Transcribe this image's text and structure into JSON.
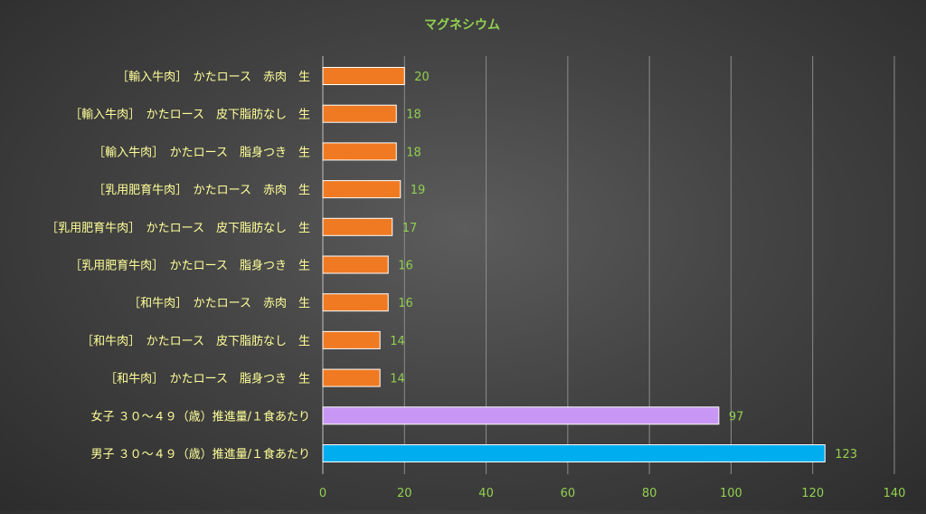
{
  "chart_data": {
    "type": "bar",
    "orientation": "horizontal",
    "title": "マグネシウム",
    "xlim": [
      0,
      140
    ],
    "x_ticks": [
      0,
      20,
      40,
      60,
      80,
      100,
      120,
      140
    ],
    "grid": "vertical",
    "legend": "none",
    "categories": [
      "［輸入牛肉］　かたロース　赤肉　生",
      "［輸入牛肉］　かたロース　皮下脂肪なし　生",
      "［輸入牛肉］　かたロース　脂身つき　生",
      "［乳用肥育牛肉］　かたロース　赤肉　生",
      "［乳用肥育牛肉］　かたロース　皮下脂肪なし　生",
      "［乳用肥育牛肉］　かたロース　脂身つき　生",
      "［和牛肉］　かたロース　赤肉　生",
      "［和牛肉］　かたロース　皮下脂肪なし　生",
      "［和牛肉］　かたロース　脂身つき　生",
      "女子 ３０～４９（歳）推進量/１食あたり",
      "男子 ３０～４９（歳）推進量/１食あたり"
    ],
    "values": [
      20,
      18,
      18,
      19,
      17,
      16,
      16,
      14,
      14,
      97,
      123
    ],
    "bar_colors": [
      "#f07a22",
      "#f07a22",
      "#f07a22",
      "#f07a22",
      "#f07a22",
      "#f07a22",
      "#f07a22",
      "#f07a22",
      "#f07a22",
      "#c896f5",
      "#00adef"
    ]
  },
  "colors": {
    "title": "#92d050",
    "category_label": "#ffff99",
    "value_label": "#92d050",
    "tick_label": "#92d050",
    "gridline": "#8c8c8c"
  }
}
